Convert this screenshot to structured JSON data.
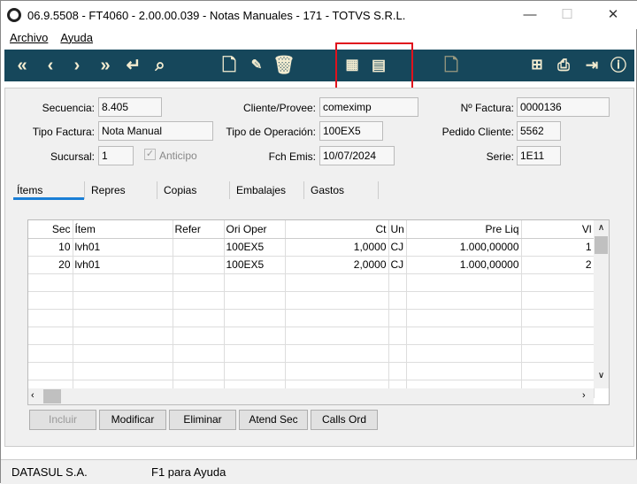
{
  "window": {
    "title": "06.9.5508 - FT4060 - 2.00.00.039 - Notas Manuales - 171 - TOTVS S.R.L.",
    "minimize": "—",
    "maximize": "☐",
    "close": "✕"
  },
  "menu": [
    "Archivo",
    "Ayuda"
  ],
  "toolbar": {
    "icons": [
      "first-icon",
      "prev-icon",
      "next-icon",
      "last-icon",
      "goto-icon",
      "search-icon",
      "new-document-icon",
      "edit-document-icon",
      "delete-icon",
      "calculator-icon",
      "approve-document-icon",
      "document-icon",
      "tree-icon",
      "print-icon",
      "exit-icon",
      "help-icon"
    ],
    "highlight_color": "#e0121d",
    "bg_color": "#16475b"
  },
  "form": {
    "secuencia_label": "Secuencia:",
    "secuencia": "8.405",
    "cliente_label": "Cliente/Provee:",
    "cliente": "comeximp",
    "factura_label": "Nº Factura:",
    "factura": "0000136",
    "tipo_factura_label": "Tipo Factura:",
    "tipo_factura": "Nota Manual",
    "tipo_operacion_label": "Tipo de Operación:",
    "tipo_operacion": "100EX5",
    "pedido_label": "Pedido Cliente:",
    "pedido": "5562",
    "sucursal_label": "Sucursal:",
    "sucursal": "1",
    "anticipo_label": "Anticipo",
    "fch_emis_label": "Fch Emis:",
    "fch_emis": "10/07/2024",
    "serie_label": "Serie:",
    "serie": "1E11"
  },
  "tabs": [
    "Ítems",
    "Repres",
    "Copias",
    "Embalajes",
    "Gastos"
  ],
  "grid": {
    "columns": [
      "Sec",
      "Ítem",
      "Refer",
      "Ori Oper",
      "Ct",
      "Un",
      "Pre Liq",
      "Vl"
    ],
    "rows": [
      [
        "10",
        "lvh01",
        "",
        "100EX5",
        "1,0000",
        "CJ",
        "1.000,00000",
        "1"
      ],
      [
        "20",
        "lvh01",
        "",
        "100EX5",
        "2,0000",
        "CJ",
        "1.000,00000",
        "2"
      ]
    ]
  },
  "buttons": [
    "Incluir",
    "Modificar",
    "Eliminar",
    "Atend Sec",
    "Calls Ord"
  ],
  "status": {
    "company": "DATASUL S.A.",
    "help": "F1 para Ayuda"
  }
}
